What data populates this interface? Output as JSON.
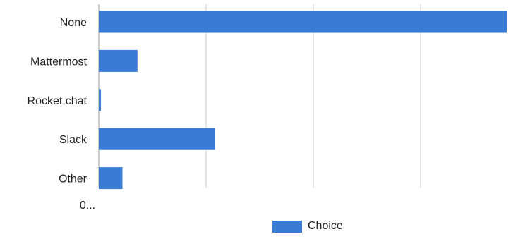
{
  "chart_data": {
    "type": "bar",
    "orientation": "horizontal",
    "categories": [
      "None",
      "Mattermost",
      "Rocket.chat",
      "Slack",
      "Other"
    ],
    "series": [
      {
        "name": "Choice",
        "values": [
          190,
          18,
          1,
          54,
          11
        ]
      }
    ],
    "xlim": [
      0,
      190
    ],
    "gridlines": [
      0,
      50,
      100,
      150
    ],
    "x_tick_labels": [
      "0..."
    ],
    "grid": true,
    "legend_position": "bottom",
    "colors": {
      "bar": "#3a7bd5",
      "grid": "#cccccc",
      "text": "#222222"
    }
  }
}
